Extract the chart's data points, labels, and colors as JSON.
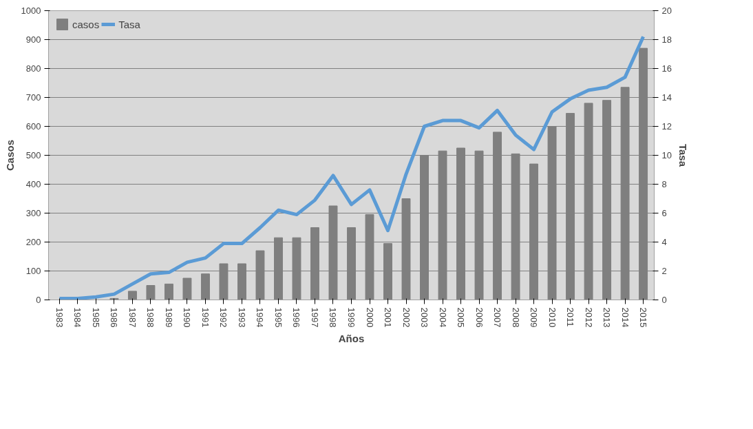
{
  "chart_data": {
    "type": "bar",
    "xlabel": "Años",
    "ylabel": "Casos",
    "y2label": "Tasa",
    "categories": [
      "1983",
      "1984",
      "1985",
      "1986",
      "1987",
      "1988",
      "1989",
      "1990",
      "1991",
      "1992",
      "1993",
      "1994",
      "1995",
      "1996",
      "1997",
      "1998",
      "1999",
      "2000",
      "2001",
      "2002",
      "2003",
      "2004",
      "2005",
      "2006",
      "2007",
      "2008",
      "2009",
      "2010",
      "2011",
      "2012",
      "2013",
      "2014",
      "2015"
    ],
    "series": [
      {
        "name": "casos",
        "color": "#7f7f7f",
        "values": [
          0,
          0,
          0,
          5,
          30,
          50,
          55,
          75,
          90,
          125,
          125,
          170,
          215,
          215,
          250,
          325,
          250,
          295,
          195,
          350,
          500,
          515,
          525,
          515,
          580,
          505,
          470,
          600,
          645,
          680,
          690,
          735,
          870
        ]
      },
      {
        "name": "Tasa",
        "type": "line",
        "axis": "y2",
        "color": "#5b9bd5",
        "values": [
          0.1,
          0.1,
          0.2,
          0.4,
          1.1,
          1.8,
          1.9,
          2.6,
          2.9,
          3.9,
          3.9,
          5.0,
          6.2,
          5.9,
          6.9,
          8.6,
          6.6,
          7.6,
          4.8,
          8.7,
          12.0,
          12.4,
          12.4,
          11.9,
          13.1,
          11.4,
          10.4,
          13.0,
          13.9,
          14.5,
          14.7,
          15.4,
          18.2
        ]
      }
    ],
    "ylim": [
      0,
      1000
    ],
    "yticks": [
      0,
      100,
      200,
      300,
      400,
      500,
      600,
      700,
      800,
      900,
      1000
    ],
    "y2lim": [
      0,
      20
    ],
    "y2ticks": [
      0,
      2,
      4,
      6,
      8,
      10,
      12,
      14,
      16,
      18,
      20
    ],
    "grid": "y",
    "legend": "top left"
  }
}
